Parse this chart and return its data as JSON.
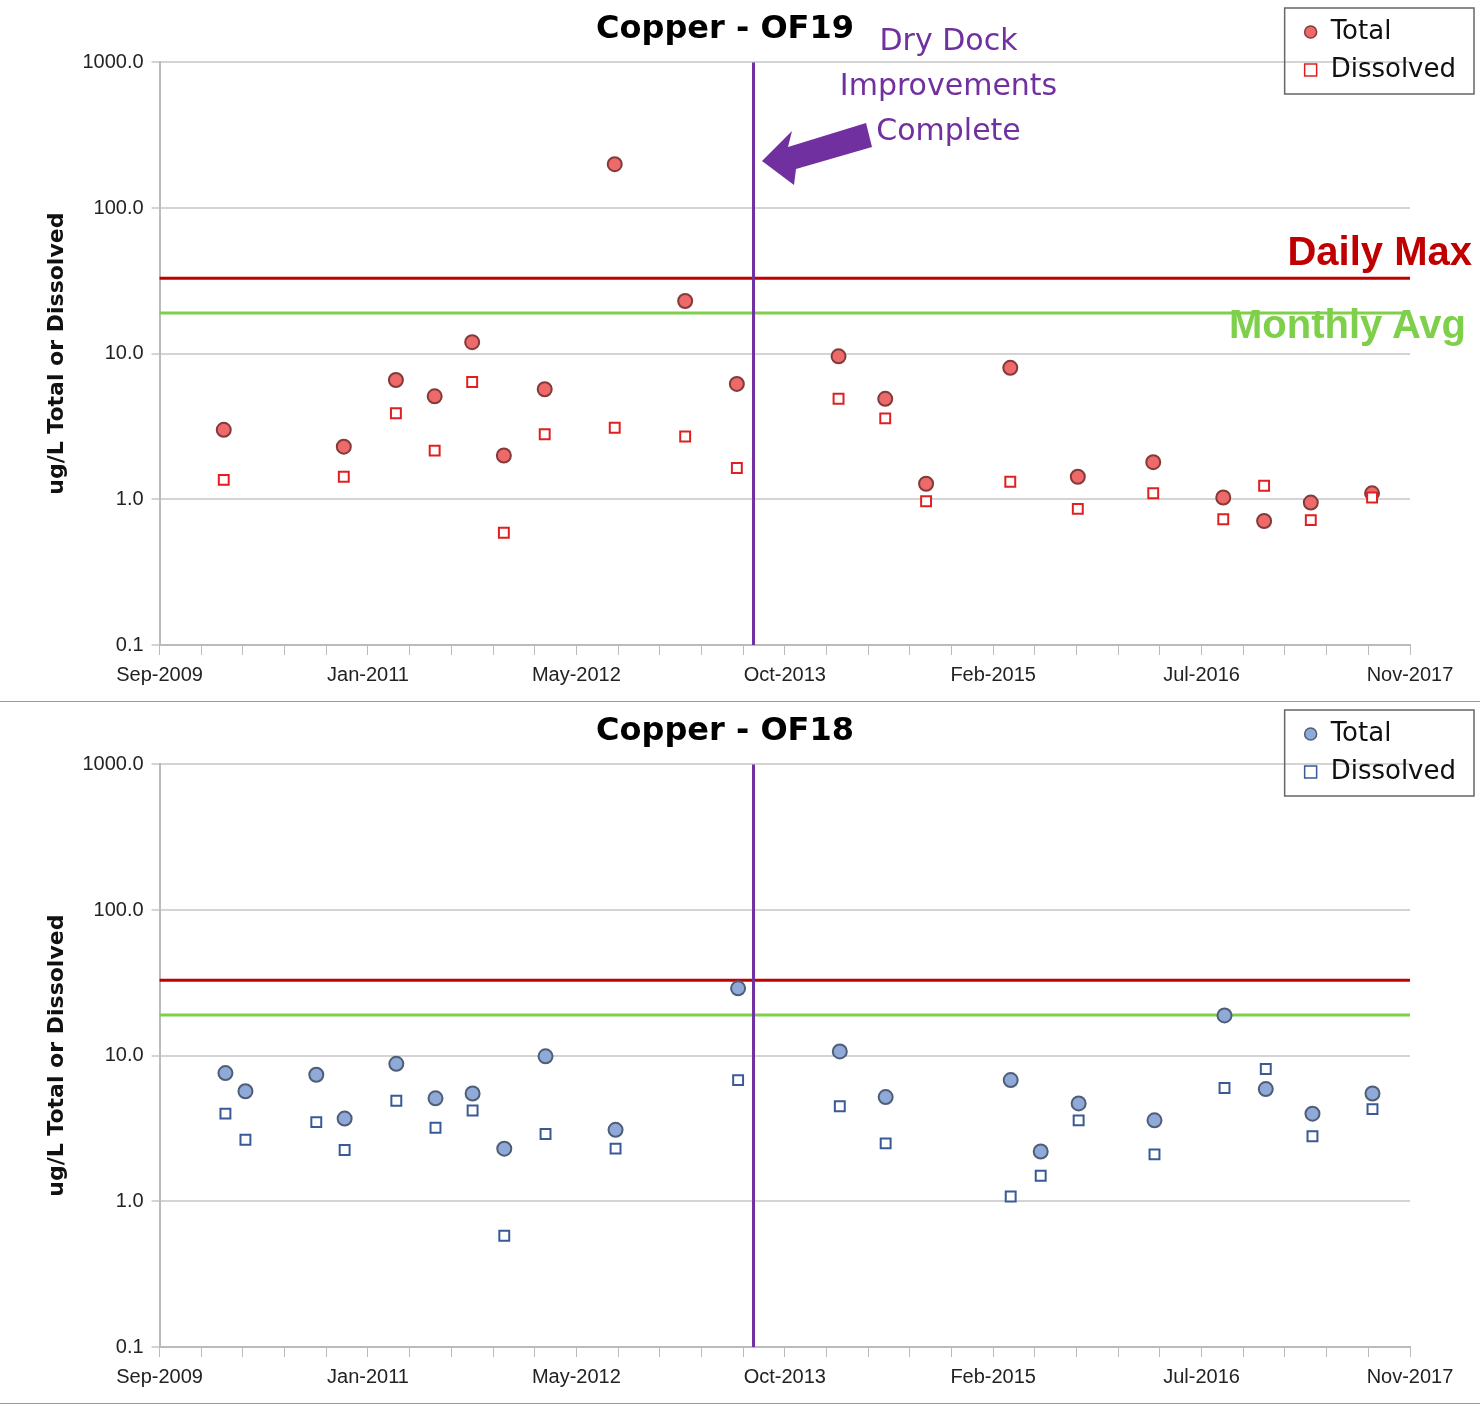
{
  "chart_data": [
    {
      "type": "scatter",
      "title": "Copper - OF19",
      "ylabel": "ug/L Total or Dissolved",
      "log": "y",
      "grid": "y",
      "legend": "top right",
      "x": [
        "2010-02-02",
        "2010-11-17",
        "2011-03-22",
        "2011-06-23",
        "2011-09-21",
        "2011-12-06",
        "2012-03-13",
        "2012-08-28",
        "2013-02-13",
        "2013-06-17",
        "2014-02-16",
        "2014-06-08",
        "2014-09-14",
        "2015-04-04",
        "2015-09-13",
        "2016-03-12",
        "2016-08-27",
        "2016-12-03",
        "2017-03-25",
        "2017-08-19"
      ],
      "series": [
        {
          "name": "Total",
          "color": "#ee6a6a",
          "marker": "circle",
          "values": [
            3.0,
            2.3,
            6.6,
            5.1,
            12,
            2.0,
            5.7,
            200,
            23,
            6.2,
            9.6,
            4.9,
            1.28,
            8.0,
            1.43,
            1.8,
            1.03,
            0.71,
            0.95,
            1.1
          ]
        },
        {
          "name": "Dissolved",
          "color": "#e02020",
          "marker": "square",
          "values": [
            1.36,
            1.43,
            3.9,
            2.16,
            6.4,
            0.59,
            2.8,
            3.1,
            2.7,
            1.64,
            4.9,
            3.6,
            0.97,
            1.32,
            0.86,
            1.1,
            0.73,
            1.24,
            0.72,
            1.03
          ]
        }
      ],
      "xlim": [
        "2009-09-01",
        "2017-11-18"
      ],
      "xticks": [
        {
          "value": "2009-09-01",
          "label": "Sep-2009"
        },
        {
          "value": "2009-12-10",
          "label": null
        },
        {
          "value": "2010-03-20",
          "label": null
        },
        {
          "value": "2010-06-28",
          "label": null
        },
        {
          "value": "2010-10-06",
          "label": null
        },
        {
          "value": "2011-01-14",
          "label": "Jan-2011"
        },
        {
          "value": "2011-04-24",
          "label": null
        },
        {
          "value": "2011-08-02",
          "label": null
        },
        {
          "value": "2011-11-10",
          "label": null
        },
        {
          "value": "2012-02-18",
          "label": null
        },
        {
          "value": "2012-05-28",
          "label": "May-2012"
        },
        {
          "value": "2012-09-05",
          "label": null
        },
        {
          "value": "2012-12-14",
          "label": null
        },
        {
          "value": "2013-03-24",
          "label": null
        },
        {
          "value": "2013-07-02",
          "label": null
        },
        {
          "value": "2013-10-10",
          "label": "Oct-2013"
        },
        {
          "value": "2014-01-18",
          "label": null
        },
        {
          "value": "2014-04-28",
          "label": null
        },
        {
          "value": "2014-08-06",
          "label": null
        },
        {
          "value": "2014-11-14",
          "label": null
        },
        {
          "value": "2015-02-22",
          "label": "Feb-2015"
        },
        {
          "value": "2015-06-02",
          "label": null
        },
        {
          "value": "2015-09-10",
          "label": null
        },
        {
          "value": "2015-12-19",
          "label": null
        },
        {
          "value": "2016-03-28",
          "label": null
        },
        {
          "value": "2016-07-06",
          "label": "Jul-2016"
        },
        {
          "value": "2016-10-14",
          "label": null
        },
        {
          "value": "2017-01-22",
          "label": null
        },
        {
          "value": "2017-05-02",
          "label": null
        },
        {
          "value": "2017-08-10",
          "label": null
        },
        {
          "value": "2017-11-18",
          "label": "Nov-2017"
        }
      ],
      "ylim": [
        0.1,
        1000
      ],
      "yticks": [
        0.1,
        {
          "value": 1,
          "label": "1.0"
        },
        {
          "value": 10,
          "label": "10.0"
        },
        {
          "value": 100,
          "label": "100.0"
        },
        {
          "value": 1000,
          "label": "1000.0"
        }
      ],
      "ref_lines": [
        {
          "axis": "y",
          "value": 33,
          "label": "Daily Max",
          "color": "#c00000"
        },
        {
          "axis": "y",
          "value": 19,
          "label": "Monthly Avg",
          "color": "#7ed04a"
        },
        {
          "axis": "x",
          "value": "2013-07-27",
          "color": "#7030a0"
        }
      ],
      "annotations": [
        {
          "text": "Dry Dock Improvements Complete",
          "x": "2013-07-27",
          "y": 190
        }
      ]
    },
    {
      "type": "scatter",
      "title": "Copper - OF18",
      "ylabel": "ug/L Total or Dissolved",
      "log": "y",
      "grid": "y",
      "legend": "top right",
      "x": [
        "2010-02-06",
        "2010-03-26",
        "2010-09-12",
        "2010-11-19",
        "2011-03-23",
        "2011-06-25",
        "2011-09-22",
        "2011-12-07",
        "2012-03-15",
        "2012-08-30",
        "2013-06-20",
        "2014-02-19",
        "2014-06-09",
        "2015-04-05",
        "2015-06-16",
        "2015-09-15",
        "2016-03-15",
        "2016-08-30",
        "2016-12-07",
        "2017-03-29",
        "2017-08-20"
      ],
      "series": [
        {
          "name": "Total",
          "color": "#8faad8",
          "marker": "circle",
          "values": [
            7.6,
            5.7,
            7.4,
            3.7,
            8.8,
            5.1,
            5.5,
            2.3,
            9.9,
            3.1,
            29,
            10.7,
            5.2,
            6.8,
            2.2,
            4.7,
            3.6,
            18.9,
            5.9,
            4.0,
            5.5
          ]
        },
        {
          "name": "Dissolved",
          "color": "#3a5a95",
          "marker": "square",
          "values": [
            4.0,
            2.65,
            3.5,
            2.25,
            4.9,
            3.2,
            4.2,
            0.58,
            2.9,
            2.3,
            6.8,
            4.5,
            2.5,
            1.08,
            1.5,
            3.6,
            2.1,
            6.0,
            8.1,
            2.8,
            4.3
          ]
        }
      ],
      "xlim": [
        "2009-09-01",
        "2017-11-18"
      ],
      "xticks": [
        {
          "value": "2009-09-01",
          "label": "Sep-2009"
        },
        {
          "value": "2009-12-10",
          "label": null
        },
        {
          "value": "2010-03-20",
          "label": null
        },
        {
          "value": "2010-06-28",
          "label": null
        },
        {
          "value": "2010-10-06",
          "label": null
        },
        {
          "value": "2011-01-14",
          "label": "Jan-2011"
        },
        {
          "value": "2011-04-24",
          "label": null
        },
        {
          "value": "2011-08-02",
          "label": null
        },
        {
          "value": "2011-11-10",
          "label": null
        },
        {
          "value": "2012-02-18",
          "label": null
        },
        {
          "value": "2012-05-28",
          "label": "May-2012"
        },
        {
          "value": "2012-09-05",
          "label": null
        },
        {
          "value": "2012-12-14",
          "label": null
        },
        {
          "value": "2013-03-24",
          "label": null
        },
        {
          "value": "2013-07-02",
          "label": null
        },
        {
          "value": "2013-10-10",
          "label": "Oct-2013"
        },
        {
          "value": "2014-01-18",
          "label": null
        },
        {
          "value": "2014-04-28",
          "label": null
        },
        {
          "value": "2014-08-06",
          "label": null
        },
        {
          "value": "2014-11-14",
          "label": null
        },
        {
          "value": "2015-02-22",
          "label": "Feb-2015"
        },
        {
          "value": "2015-06-02",
          "label": null
        },
        {
          "value": "2015-09-10",
          "label": null
        },
        {
          "value": "2015-12-19",
          "label": null
        },
        {
          "value": "2016-03-28",
          "label": null
        },
        {
          "value": "2016-07-06",
          "label": "Jul-2016"
        },
        {
          "value": "2016-10-14",
          "label": null
        },
        {
          "value": "2017-01-22",
          "label": null
        },
        {
          "value": "2017-05-02",
          "label": null
        },
        {
          "value": "2017-08-10",
          "label": null
        },
        {
          "value": "2017-11-18",
          "label": "Nov-2017"
        }
      ],
      "ylim": [
        0.1,
        1000
      ],
      "yticks": [
        0.1,
        {
          "value": 1,
          "label": "1.0"
        },
        {
          "value": 10,
          "label": "10.0"
        },
        {
          "value": 100,
          "label": "100.0"
        },
        {
          "value": 1000,
          "label": "1000.0"
        }
      ],
      "ref_lines": [
        {
          "axis": "y",
          "value": 33,
          "color": "#c00000"
        },
        {
          "axis": "y",
          "value": 19,
          "color": "#7ed04a"
        },
        {
          "axis": "x",
          "value": "2013-07-27",
          "color": "#7030a0"
        }
      ]
    }
  ]
}
